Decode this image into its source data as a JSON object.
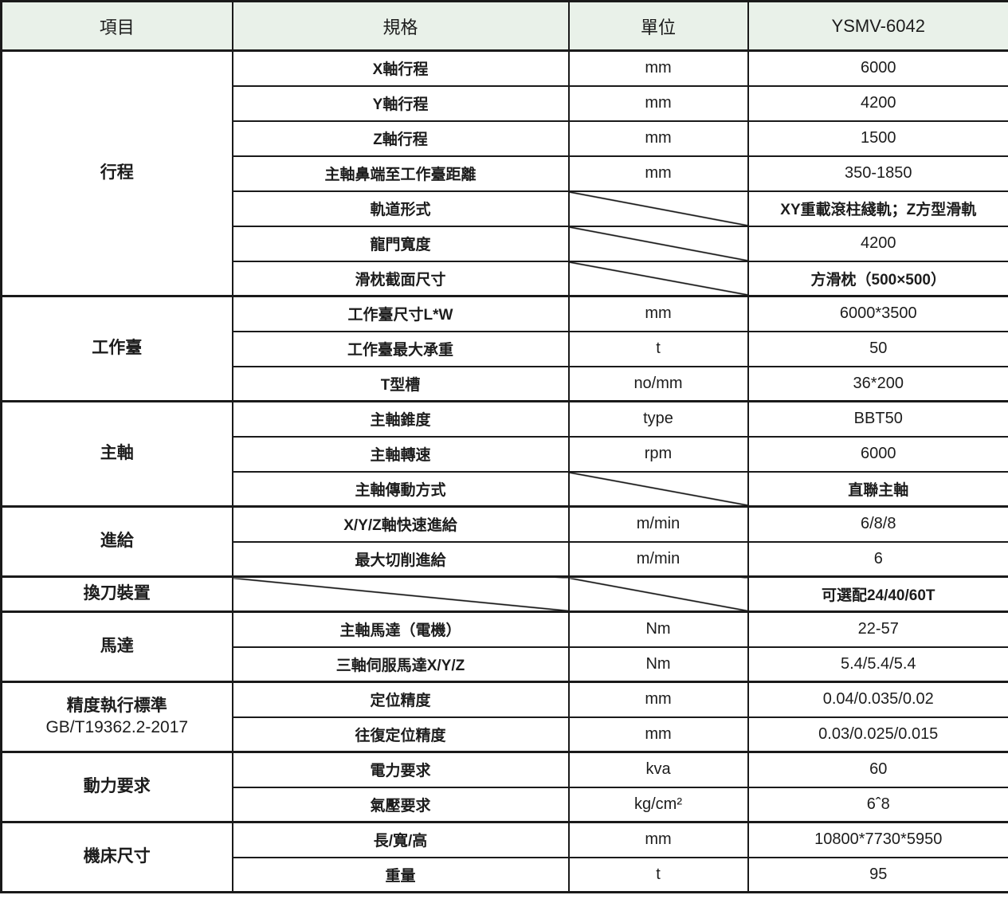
{
  "table": {
    "columns": {
      "item": "項目",
      "spec": "規格",
      "unit": "單位",
      "model": "YSMV-6042"
    },
    "colors": {
      "header_bg": "#e9f1e9",
      "border": "#1a1a1a"
    },
    "sections": [
      {
        "item": "行程",
        "rows": [
          {
            "spec": "X軸行程",
            "unit": "mm",
            "value": "6000"
          },
          {
            "spec": "Y軸行程",
            "unit": "mm",
            "value": "4200"
          },
          {
            "spec": "Z軸行程",
            "unit": "mm",
            "value": "1500"
          },
          {
            "spec": "主軸鼻端至工作臺距離",
            "unit": "mm",
            "value": "350-1850"
          },
          {
            "spec": "軌道形式",
            "unit_diag": true,
            "value": "XY重載滾柱綫軌；Z方型滑軌"
          },
          {
            "spec": "龍門寬度",
            "unit_diag": true,
            "value": "4200"
          },
          {
            "spec": "滑枕截面尺寸",
            "unit_diag": true,
            "value": "方滑枕（500×500）"
          }
        ]
      },
      {
        "item": "工作臺",
        "rows": [
          {
            "spec": "工作臺尺寸L*W",
            "unit": "mm",
            "value": "6000*3500"
          },
          {
            "spec": "工作臺最大承重",
            "unit": "t",
            "value": "50"
          },
          {
            "spec": "T型槽",
            "unit": "no/mm",
            "value": "36*200"
          }
        ]
      },
      {
        "item": "主軸",
        "rows": [
          {
            "spec": "主軸錐度",
            "unit": "type",
            "value": "BBT50"
          },
          {
            "spec": "主軸轉速",
            "unit": "rpm",
            "value": "6000"
          },
          {
            "spec": "主軸傳動方式",
            "unit_diag": true,
            "value": "直聯主軸"
          }
        ]
      },
      {
        "item": "進給",
        "rows": [
          {
            "spec": "X/Y/Z軸快速進給",
            "unit": "m/min",
            "value": "6/8/8"
          },
          {
            "spec": "最大切削進給",
            "unit": "m/min",
            "value": "6"
          }
        ]
      },
      {
        "item": "換刀裝置",
        "rows": [
          {
            "spec_diag": true,
            "unit_diag": true,
            "value": "可選配24/40/60T"
          }
        ]
      },
      {
        "item": "馬達",
        "rows": [
          {
            "spec": "主軸馬達（電機）",
            "unit": "Nm",
            "value": "22-57"
          },
          {
            "spec": "三軸伺服馬達X/Y/Z",
            "unit": "Nm",
            "value": "5.4/5.4/5.4"
          }
        ]
      },
      {
        "item": "精度執行標準\nGB/T19362.2-2017",
        "rows": [
          {
            "spec": "定位精度",
            "unit": "mm",
            "value": "0.04/0.035/0.02"
          },
          {
            "spec": "往復定位精度",
            "unit": "mm",
            "value": "0.03/0.025/0.015"
          }
        ]
      },
      {
        "item": "動力要求",
        "rows": [
          {
            "spec": "電力要求",
            "unit": "kva",
            "value": "60"
          },
          {
            "spec": "氣壓要求",
            "unit": "kg/cm²",
            "value": "6ˆ8"
          }
        ]
      },
      {
        "item": "機床尺寸",
        "rows": [
          {
            "spec": "長/寬/高",
            "unit": "mm",
            "value": "10800*7730*5950"
          },
          {
            "spec": "重量",
            "unit": "t",
            "value": "95"
          }
        ]
      }
    ]
  }
}
